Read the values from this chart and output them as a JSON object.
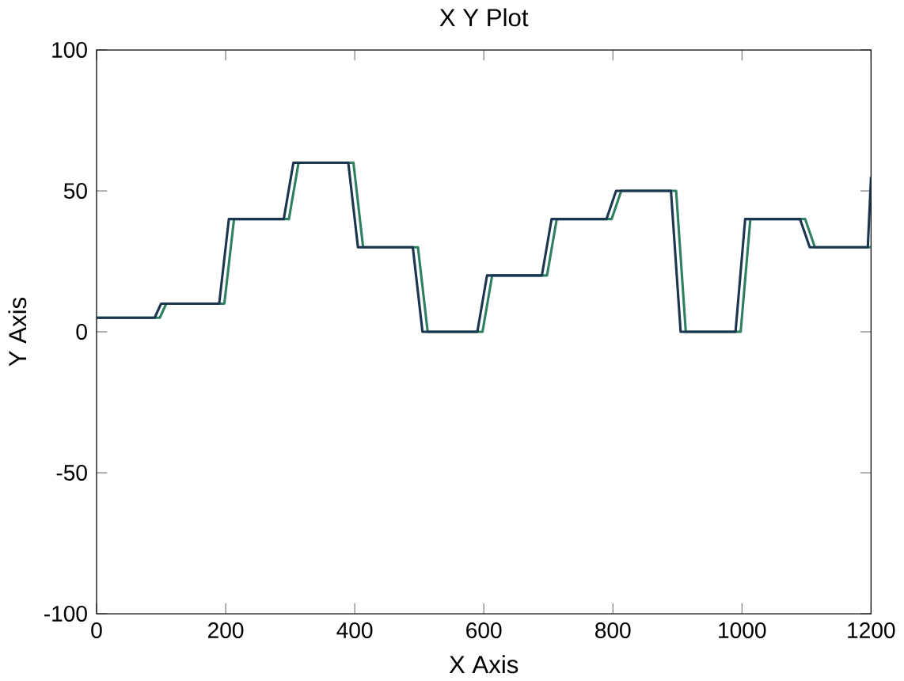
{
  "chart_data": {
    "type": "line",
    "title": "X Y Plot",
    "xlabel": "X Axis",
    "ylabel": "Y Axis",
    "xlim": [
      0,
      1200
    ],
    "ylim": [
      -100,
      100
    ],
    "xticks": [
      0,
      200,
      400,
      600,
      800,
      1000,
      1200
    ],
    "yticks": [
      -100,
      -50,
      0,
      50,
      100
    ],
    "grid": false,
    "marker": "none",
    "line_style": "solid",
    "series": [
      {
        "color": "#2e8060",
        "x": [
          0,
          98,
          108,
          198,
          213,
          298,
          313,
          398,
          413,
          498,
          513,
          598,
          613,
          698,
          713,
          798,
          813,
          898,
          913,
          998,
          1013,
          1098,
          1113,
          1200
        ],
        "values": [
          5,
          5,
          10,
          10,
          40,
          40,
          60,
          60,
          30,
          30,
          0,
          0,
          20,
          20,
          40,
          40,
          50,
          50,
          0,
          0,
          40,
          40,
          30,
          30
        ]
      },
      {
        "color": "#1c3550",
        "x": [
          0,
          90,
          100,
          190,
          205,
          290,
          305,
          390,
          405,
          490,
          505,
          590,
          605,
          690,
          705,
          790,
          805,
          890,
          905,
          990,
          1005,
          1090,
          1105,
          1195,
          1200
        ],
        "values": [
          5,
          5,
          10,
          10,
          40,
          40,
          60,
          60,
          30,
          30,
          0,
          0,
          20,
          20,
          40,
          40,
          50,
          50,
          0,
          0,
          40,
          40,
          30,
          30,
          55
        ]
      }
    ]
  }
}
